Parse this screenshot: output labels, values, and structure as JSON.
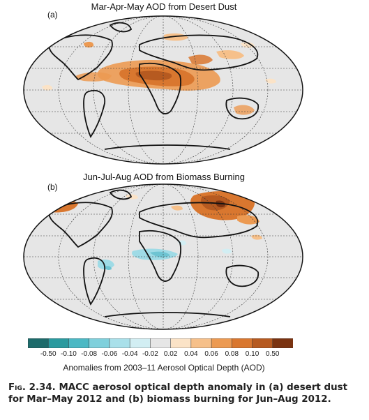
{
  "maps": [
    {
      "panel_label": "(a)",
      "title": "Mar-Apr-May AOD from Desert Dust"
    },
    {
      "panel_label": "(b)",
      "title": "Jun-Jul-Aug AOD from Biomass Burning"
    }
  ],
  "colorbar": {
    "ticks": [
      "-0.50",
      "-0.10",
      "-0.08",
      "-0.06",
      "-0.04",
      "-0.02",
      "0.02",
      "0.04",
      "0.06",
      "0.08",
      "0.10",
      "0.50"
    ],
    "colors": [
      "#1d6b6b",
      "#2a9a9f",
      "#4bb8c4",
      "#7fd0dc",
      "#a9e0ea",
      "#d2eef3",
      "#e6e6e6",
      "#fbe3c7",
      "#f6c08a",
      "#ec9a52",
      "#d9772f",
      "#b65a20",
      "#7a3311"
    ],
    "label": "Anomalies from 2003–11 Aerosol Optical Depth (AOD)"
  },
  "caption": {
    "figure": "Fig. 2.34.",
    "text": "MACC aerosol optical depth anomaly in (a) desert dust for Mar–May 2012 and (b) biomass burning for Jun–Aug 2012."
  },
  "colors": {
    "background": "#e6e6e6",
    "positive_anomaly": "#d9772f",
    "strong_positive": "#b65a20",
    "negative_anomaly": "#9fdbe6"
  }
}
